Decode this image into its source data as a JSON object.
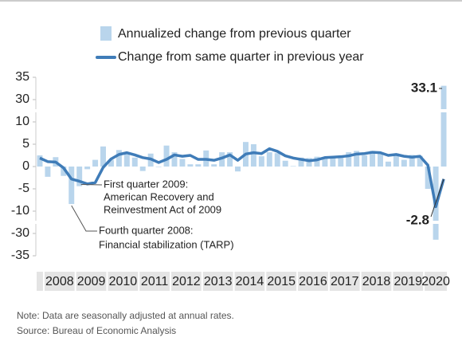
{
  "chart_data": {
    "type": "bar_line",
    "categories": [
      null,
      "2008",
      null,
      null,
      null,
      "2009",
      null,
      null,
      null,
      "2010",
      null,
      null,
      null,
      "2011",
      null,
      null,
      null,
      "2012",
      null,
      null,
      null,
      "2013",
      null,
      null,
      null,
      "2014",
      null,
      null,
      null,
      "2015",
      null,
      null,
      null,
      "2016",
      null,
      null,
      null,
      "2017",
      null,
      null,
      null,
      "2018",
      null,
      null,
      null,
      "2019",
      null,
      null,
      null,
      "2020",
      null,
      null
    ],
    "series": [
      {
        "name": "Annualized change from previous quarter",
        "type": "bar",
        "color": "#b9d5ec",
        "values": [
          2.5,
          -2.3,
          2.1,
          -2.1,
          -8.4,
          -4.4,
          -0.6,
          1.5,
          4.5,
          1.5,
          3.7,
          3.0,
          2.0,
          -1.0,
          2.9,
          -0.1,
          4.7,
          3.2,
          1.7,
          0.5,
          0.5,
          3.6,
          0.5,
          3.2,
          3.2,
          -1.1,
          5.5,
          5.0,
          2.3,
          3.2,
          3.0,
          1.3,
          0.1,
          2.0,
          1.9,
          2.2,
          2.0,
          2.3,
          2.2,
          3.2,
          3.5,
          2.5,
          3.5,
          2.9,
          1.1,
          2.9,
          1.5,
          2.6,
          2.4,
          -5.0,
          -31.4,
          33.1
        ]
      },
      {
        "name": "Change from same quarter in previous year",
        "type": "line",
        "color": "#3f7cb8",
        "values": [
          1.9,
          1.1,
          1.0,
          -0.3,
          -2.8,
          -3.3,
          -3.9,
          -3.6,
          -0.2,
          1.7,
          2.7,
          3.1,
          2.6,
          2.0,
          1.7,
          0.9,
          1.6,
          2.6,
          2.3,
          2.5,
          1.6,
          1.6,
          1.4,
          1.9,
          2.6,
          1.4,
          2.8,
          3.1,
          2.9,
          4.0,
          3.4,
          2.4,
          1.9,
          1.6,
          1.3,
          1.5,
          2.0,
          2.1,
          2.2,
          2.4,
          2.8,
          2.9,
          3.2,
          3.1,
          2.5,
          2.7,
          2.3,
          2.1,
          2.3,
          0.3,
          -9.0,
          -2.8
        ]
      }
    ],
    "ylim": [
      -35,
      35
    ],
    "yticks": [
      35,
      30,
      10,
      5,
      0,
      -5,
      -10,
      -30,
      -35
    ],
    "y_axis_breaks": [
      [
        10,
        30
      ],
      [
        -30,
        -10
      ]
    ],
    "annotations": [
      {
        "lines": [
          "First quarter 2009:",
          "American Recovery and",
          "Reinvestment Act of 2009"
        ]
      },
      {
        "lines": [
          "Fourth quarter 2008:",
          "Financial stabilization (TARP)"
        ]
      }
    ],
    "notes": [
      "Note: Data are seasonally adjusted at annual rates.",
      "Source: Bureau of Economic Analysis"
    ]
  }
}
